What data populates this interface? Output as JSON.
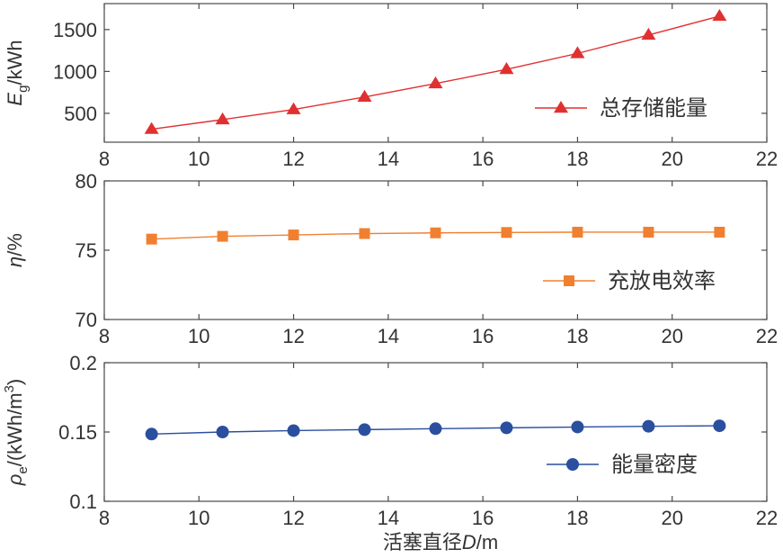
{
  "chart_data": [
    {
      "type": "line",
      "x": [
        9,
        10.5,
        12,
        13.5,
        15,
        16.5,
        18,
        19.5,
        21
      ],
      "series": [
        {
          "name": "总存储能量",
          "values": [
            310,
            425,
            545,
            695,
            855,
            1025,
            1215,
            1435,
            1660
          ],
          "color": "#e03030",
          "marker": "triangle"
        }
      ],
      "ylabel_main": "E",
      "ylabel_sub": "g",
      "ylabel_rest": "/kWh",
      "xlim": [
        8,
        22
      ],
      "ylim": [
        155,
        1810
      ],
      "xticks": [
        8,
        10,
        12,
        14,
        16,
        18,
        20,
        22
      ],
      "yticks": [
        500,
        1000,
        1500
      ],
      "legend": "lower-right"
    },
    {
      "type": "line",
      "x": [
        9,
        10.5,
        12,
        13.5,
        15,
        16.5,
        18,
        19.5,
        21
      ],
      "series": [
        {
          "name": "充放电效率",
          "values": [
            75.8,
            76.0,
            76.1,
            76.2,
            76.25,
            76.28,
            76.3,
            76.3,
            76.3
          ],
          "color": "#f08030",
          "marker": "square"
        }
      ],
      "ylabel_main": "η",
      "ylabel_rest": "/%",
      "xlim": [
        8,
        22
      ],
      "ylim": [
        70,
        80
      ],
      "xticks": [
        8,
        10,
        12,
        14,
        16,
        18,
        20,
        22
      ],
      "yticks": [
        70,
        75,
        80
      ],
      "legend": "lower-right"
    },
    {
      "type": "line",
      "x": [
        9,
        10.5,
        12,
        13.5,
        15,
        16.5,
        18,
        19.5,
        21
      ],
      "series": [
        {
          "name": "能量密度",
          "values": [
            0.1485,
            0.15,
            0.151,
            0.1517,
            0.1524,
            0.153,
            0.1536,
            0.1541,
            0.1545
          ],
          "color": "#2a4f9e",
          "marker": "circle"
        }
      ],
      "ylabel_main": "ρ",
      "ylabel_sub": "e",
      "ylabel_rest": "/(kWh/m",
      "ylabel_sup": "3",
      "ylabel_end": ")",
      "xlim": [
        8,
        22
      ],
      "ylim": [
        0.1,
        0.2
      ],
      "xticks": [
        8,
        10,
        12,
        14,
        16,
        18,
        20,
        22
      ],
      "yticks": [
        0.1,
        0.15,
        0.2
      ],
      "ytick_labels": [
        "0.1",
        "0.15",
        "0.2"
      ],
      "legend": "lower-right"
    }
  ],
  "xlabel_pre": "活塞直径",
  "xlabel_main": "D",
  "xlabel_post": "/m"
}
